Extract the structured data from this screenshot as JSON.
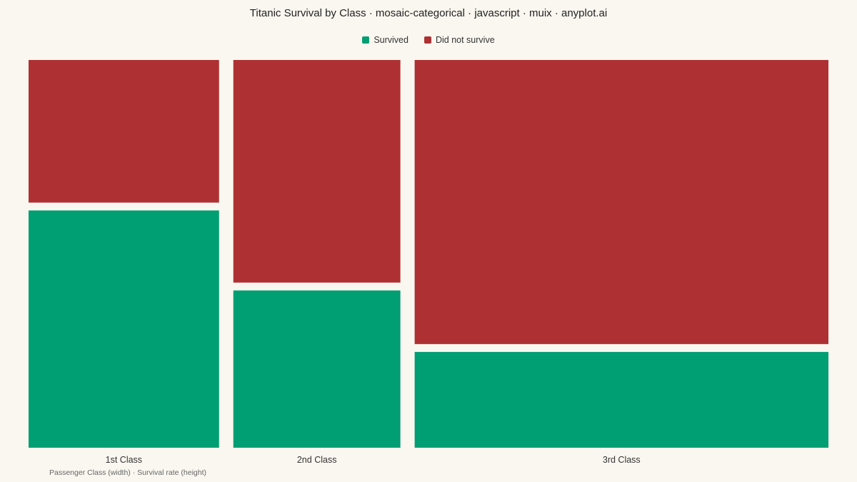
{
  "title": "Titanic Survival by Class · mosaic-categorical · javascript · muix · anyplot.ai",
  "caption": "Passenger Class (width) · Survival rate (height)",
  "colors": {
    "survived": "#009E73",
    "did_not_survive": "#AF3032",
    "background": "#FAF7F0"
  },
  "chart_data": {
    "type": "mosaic",
    "title": "Titanic Survival by Class · mosaic-categorical · javascript · muix · anyplot.ai",
    "legend_position": "top-center",
    "categories": [
      "1st Class",
      "2nd Class",
      "3rd Class"
    ],
    "class_counts": [
      325,
      285,
      706
    ],
    "series": [
      {
        "name": "Survived",
        "values": [
          203,
          118,
          178
        ]
      },
      {
        "name": "Did not survive",
        "values": [
          122,
          167,
          528
        ]
      }
    ]
  }
}
